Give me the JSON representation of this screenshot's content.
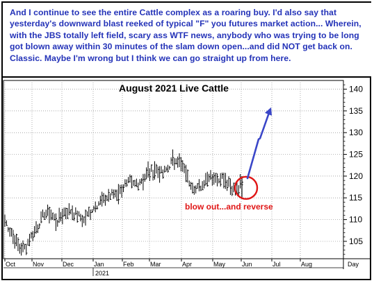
{
  "commentary": {
    "text": "And I continue to see the entire Cattle complex as a roaring buy. I'd also say that yesterday's downward blast reeked of typical \"F\" you futures market action... Wherein, with the JBS totally left field, scary ass WTF news, anybody who was trying to be long got blown away within 30 minutes of the slam down open...and did NOT get back on. Classic. Maybe I'm wrong but I think we can go straight up from here."
  },
  "chart_data": {
    "type": "ohlc",
    "title": "August 2021 Live Cattle",
    "x_axis": {
      "tick_labels": [
        "Oct",
        "Nov",
        "Dec",
        "Jan",
        "Feb",
        "Mar",
        "Apr",
        "May",
        "Jun",
        "Jul",
        "Aug",
        "Day"
      ],
      "year_label": "2021"
    },
    "y_axis": {
      "tick_labels": [
        "105",
        "110",
        "115",
        "120",
        "125",
        "130",
        "135",
        "140"
      ],
      "ylim": [
        101,
        142
      ],
      "position": "right"
    },
    "grid": true,
    "series": [
      {
        "values": [
          {
            "x": "Oct",
            "y": 109.5
          },
          {
            "x": "Oct",
            "y": 107
          },
          {
            "x": "Oct",
            "y": 104
          },
          {
            "x": "Oct",
            "y": 103.5
          },
          {
            "x": "Oct",
            "y": 106
          },
          {
            "x": "Oct",
            "y": 108.5
          },
          {
            "x": "Nov",
            "y": 111.5
          },
          {
            "x": "Nov",
            "y": 111
          },
          {
            "x": "Nov",
            "y": 109.5
          },
          {
            "x": "Nov",
            "y": 111.5
          },
          {
            "x": "Nov",
            "y": 112
          },
          {
            "x": "Dec",
            "y": 111
          },
          {
            "x": "Dec",
            "y": 110
          },
          {
            "x": "Dec",
            "y": 112
          },
          {
            "x": "Dec",
            "y": 113.5
          },
          {
            "x": "Jan",
            "y": 114.5
          },
          {
            "x": "Jan",
            "y": 115.5
          },
          {
            "x": "Jan",
            "y": 116
          },
          {
            "x": "Feb",
            "y": 117.5
          },
          {
            "x": "Feb",
            "y": 118.5
          },
          {
            "x": "Feb",
            "y": 118
          },
          {
            "x": "Mar",
            "y": 119.5
          },
          {
            "x": "Mar",
            "y": 121
          },
          {
            "x": "Mar",
            "y": 121.5
          },
          {
            "x": "Mar",
            "y": 120.5
          },
          {
            "x": "Apr",
            "y": 122.5
          },
          {
            "x": "Apr",
            "y": 124
          },
          {
            "x": "Apr",
            "y": 122
          },
          {
            "x": "Apr",
            "y": 119
          },
          {
            "x": "May",
            "y": 117
          },
          {
            "x": "May",
            "y": 118
          },
          {
            "x": "May",
            "y": 120.5
          },
          {
            "x": "May",
            "y": 119
          },
          {
            "x": "May",
            "y": 120
          },
          {
            "x": "Jun",
            "y": 118.5
          },
          {
            "x": "Jun",
            "y": 116.5
          },
          {
            "x": "Jun",
            "y": 118
          }
        ]
      }
    ],
    "annotations": {
      "circle_label": "blow out...and reverse",
      "arrow_target": 135.5,
      "color_arrow": "#3a46c8",
      "color_circle": "#e01616"
    }
  }
}
